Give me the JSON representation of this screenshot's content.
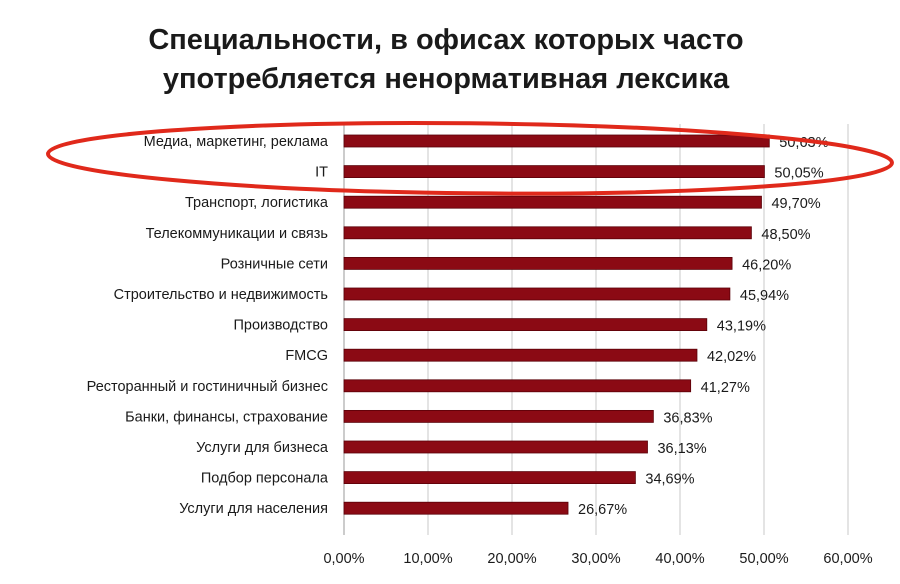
{
  "chart_data": {
    "type": "bar",
    "orientation": "horizontal",
    "title": "Специальности, в офисах которых часто употребляется ненормативная лексика",
    "title_lines": [
      "Специальности, в офисах которых часто",
      "употребляется ненормативная лексика"
    ],
    "categories": [
      "Медиа, маркетинг, реклама",
      "IT",
      "Транспорт, логистика",
      "Телекоммуникации и связь",
      "Розничные сети",
      "Строительство и недвижимость",
      "Производство",
      "FMCG",
      "Ресторанный и гостиничный бизнес",
      "Банки, финансы, страхование",
      "Услуги для бизнеса",
      "Подбор персонала",
      "Услуги для населения"
    ],
    "values": [
      50.63,
      50.05,
      49.7,
      48.5,
      46.2,
      45.94,
      43.19,
      42.02,
      41.27,
      36.83,
      36.13,
      34.69,
      26.67
    ],
    "value_labels": [
      "50,63%",
      "50,05%",
      "49,70%",
      "48,50%",
      "46,20%",
      "45,94%",
      "43,19%",
      "42,02%",
      "41,27%",
      "36,83%",
      "36,13%",
      "34,69%",
      "26,67%"
    ],
    "xlim": [
      0,
      60
    ],
    "xticks": [
      0,
      10,
      20,
      30,
      40,
      50,
      60
    ],
    "xtick_labels": [
      "0,00%",
      "10,00%",
      "20,00%",
      "30,00%",
      "40,00%",
      "50,00%",
      "60,00%"
    ],
    "xlabel": "",
    "ylabel": "",
    "grid": "vertical",
    "legend": "none",
    "colors": {
      "bar": "#8b0a14",
      "bar_edge": "#5a0008",
      "grid": "#c8c8c8",
      "text": "#1a1a1a",
      "highlight_ellipse": "#e0291b"
    },
    "annotations": [
      {
        "type": "ellipse",
        "highlights": [
          "Медиа, маркетинг, реклама",
          "IT"
        ],
        "color": "#e0291b"
      }
    ]
  }
}
